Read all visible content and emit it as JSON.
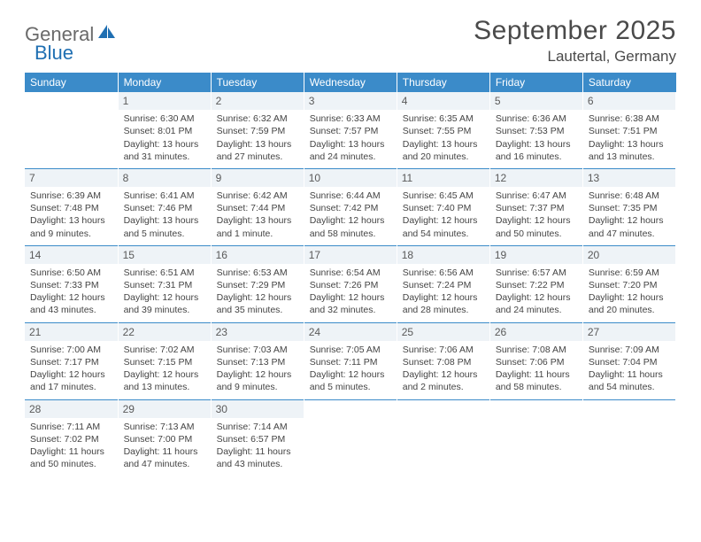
{
  "logo": {
    "text1": "General",
    "text2": "Blue"
  },
  "title": "September 2025",
  "location": "Lautertal, Germany",
  "colors": {
    "header_bg": "#3b8bc9",
    "header_fg": "#ffffff",
    "daynum_bg": "#eef3f7",
    "row_border": "#3b8bc9",
    "logo_gray": "#6a6a6a",
    "logo_blue": "#1f6fb2",
    "text": "#444444",
    "background": "#ffffff"
  },
  "weekdays": [
    "Sunday",
    "Monday",
    "Tuesday",
    "Wednesday",
    "Thursday",
    "Friday",
    "Saturday"
  ],
  "calendar": {
    "start_weekday": 1,
    "days": [
      {
        "n": 1,
        "sunrise": "6:30 AM",
        "sunset": "8:01 PM",
        "daylight": "13 hours and 31 minutes."
      },
      {
        "n": 2,
        "sunrise": "6:32 AM",
        "sunset": "7:59 PM",
        "daylight": "13 hours and 27 minutes."
      },
      {
        "n": 3,
        "sunrise": "6:33 AM",
        "sunset": "7:57 PM",
        "daylight": "13 hours and 24 minutes."
      },
      {
        "n": 4,
        "sunrise": "6:35 AM",
        "sunset": "7:55 PM",
        "daylight": "13 hours and 20 minutes."
      },
      {
        "n": 5,
        "sunrise": "6:36 AM",
        "sunset": "7:53 PM",
        "daylight": "13 hours and 16 minutes."
      },
      {
        "n": 6,
        "sunrise": "6:38 AM",
        "sunset": "7:51 PM",
        "daylight": "13 hours and 13 minutes."
      },
      {
        "n": 7,
        "sunrise": "6:39 AM",
        "sunset": "7:48 PM",
        "daylight": "13 hours and 9 minutes."
      },
      {
        "n": 8,
        "sunrise": "6:41 AM",
        "sunset": "7:46 PM",
        "daylight": "13 hours and 5 minutes."
      },
      {
        "n": 9,
        "sunrise": "6:42 AM",
        "sunset": "7:44 PM",
        "daylight": "13 hours and 1 minute."
      },
      {
        "n": 10,
        "sunrise": "6:44 AM",
        "sunset": "7:42 PM",
        "daylight": "12 hours and 58 minutes."
      },
      {
        "n": 11,
        "sunrise": "6:45 AM",
        "sunset": "7:40 PM",
        "daylight": "12 hours and 54 minutes."
      },
      {
        "n": 12,
        "sunrise": "6:47 AM",
        "sunset": "7:37 PM",
        "daylight": "12 hours and 50 minutes."
      },
      {
        "n": 13,
        "sunrise": "6:48 AM",
        "sunset": "7:35 PM",
        "daylight": "12 hours and 47 minutes."
      },
      {
        "n": 14,
        "sunrise": "6:50 AM",
        "sunset": "7:33 PM",
        "daylight": "12 hours and 43 minutes."
      },
      {
        "n": 15,
        "sunrise": "6:51 AM",
        "sunset": "7:31 PM",
        "daylight": "12 hours and 39 minutes."
      },
      {
        "n": 16,
        "sunrise": "6:53 AM",
        "sunset": "7:29 PM",
        "daylight": "12 hours and 35 minutes."
      },
      {
        "n": 17,
        "sunrise": "6:54 AM",
        "sunset": "7:26 PM",
        "daylight": "12 hours and 32 minutes."
      },
      {
        "n": 18,
        "sunrise": "6:56 AM",
        "sunset": "7:24 PM",
        "daylight": "12 hours and 28 minutes."
      },
      {
        "n": 19,
        "sunrise": "6:57 AM",
        "sunset": "7:22 PM",
        "daylight": "12 hours and 24 minutes."
      },
      {
        "n": 20,
        "sunrise": "6:59 AM",
        "sunset": "7:20 PM",
        "daylight": "12 hours and 20 minutes."
      },
      {
        "n": 21,
        "sunrise": "7:00 AM",
        "sunset": "7:17 PM",
        "daylight": "12 hours and 17 minutes."
      },
      {
        "n": 22,
        "sunrise": "7:02 AM",
        "sunset": "7:15 PM",
        "daylight": "12 hours and 13 minutes."
      },
      {
        "n": 23,
        "sunrise": "7:03 AM",
        "sunset": "7:13 PM",
        "daylight": "12 hours and 9 minutes."
      },
      {
        "n": 24,
        "sunrise": "7:05 AM",
        "sunset": "7:11 PM",
        "daylight": "12 hours and 5 minutes."
      },
      {
        "n": 25,
        "sunrise": "7:06 AM",
        "sunset": "7:08 PM",
        "daylight": "12 hours and 2 minutes."
      },
      {
        "n": 26,
        "sunrise": "7:08 AM",
        "sunset": "7:06 PM",
        "daylight": "11 hours and 58 minutes."
      },
      {
        "n": 27,
        "sunrise": "7:09 AM",
        "sunset": "7:04 PM",
        "daylight": "11 hours and 54 minutes."
      },
      {
        "n": 28,
        "sunrise": "7:11 AM",
        "sunset": "7:02 PM",
        "daylight": "11 hours and 50 minutes."
      },
      {
        "n": 29,
        "sunrise": "7:13 AM",
        "sunset": "7:00 PM",
        "daylight": "11 hours and 47 minutes."
      },
      {
        "n": 30,
        "sunrise": "7:14 AM",
        "sunset": "6:57 PM",
        "daylight": "11 hours and 43 minutes."
      }
    ]
  },
  "labels": {
    "sunrise_prefix": "Sunrise: ",
    "sunset_prefix": "Sunset: ",
    "daylight_prefix": "Daylight: "
  }
}
